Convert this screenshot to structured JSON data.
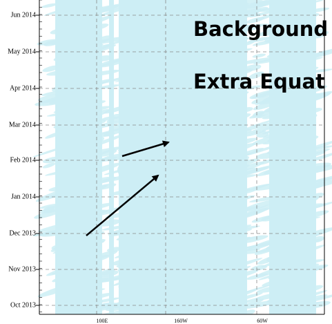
{
  "y_axis": {
    "labels": [
      "Jun 2014",
      "May 2014",
      "Apr 2014",
      "Mar 2014",
      "Feb 2014",
      "Jan 2014",
      "Dec 2013",
      "Nov 2013",
      "Oct 2013"
    ]
  },
  "x_axis": {
    "labels": [
      "100E",
      "160W",
      "60W"
    ]
  },
  "annotations": [
    "Background",
    "Extra Equat"
  ]
}
